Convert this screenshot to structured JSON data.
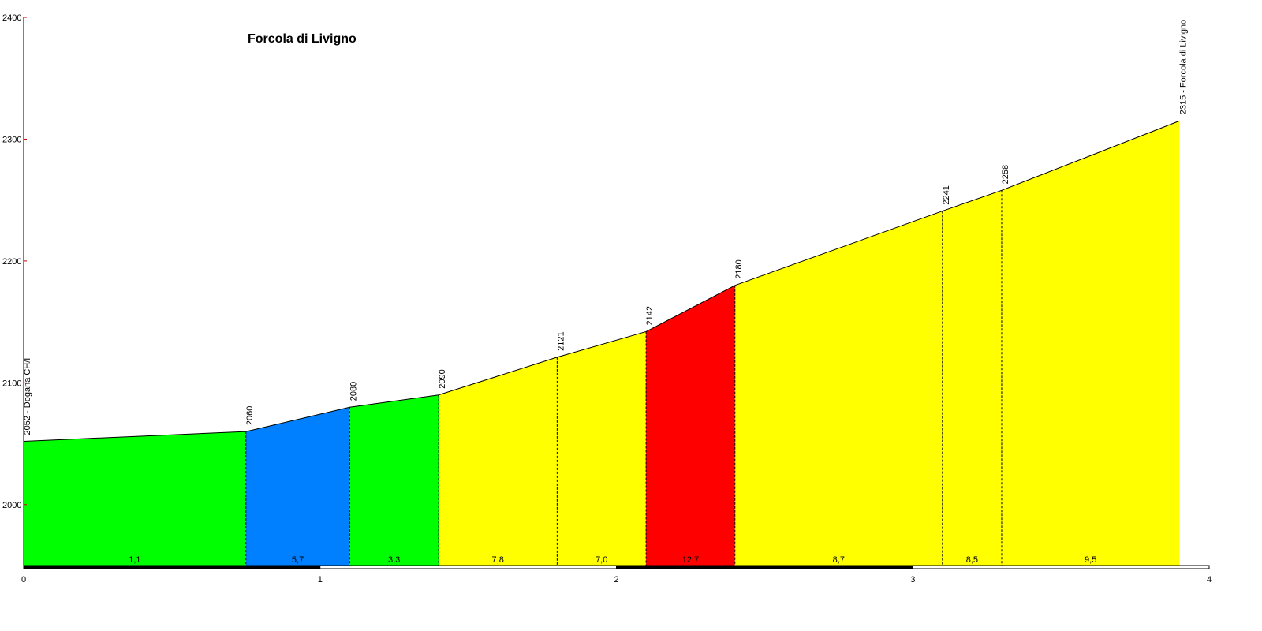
{
  "chart_data": {
    "type": "area",
    "title": "Forcola di Livigno",
    "xlabel": "",
    "ylabel": "",
    "xlim": [
      0,
      4
    ],
    "ylim": [
      1950,
      2400
    ],
    "x_ticks": [
      "0",
      "1",
      "2",
      "3",
      "4"
    ],
    "y_ticks": [
      "2000",
      "2100",
      "2200",
      "2300",
      "2400"
    ],
    "grid": false,
    "points": [
      {
        "x": 0.0,
        "y": 2052,
        "label": "2052 - Dogana CH/I"
      },
      {
        "x": 0.75,
        "y": 2060,
        "label": "2060"
      },
      {
        "x": 1.1,
        "y": 2080,
        "label": "2080"
      },
      {
        "x": 1.4,
        "y": 2090,
        "label": "2090"
      },
      {
        "x": 1.8,
        "y": 2121,
        "label": "2121"
      },
      {
        "x": 2.1,
        "y": 2142,
        "label": "2142"
      },
      {
        "x": 2.4,
        "y": 2180,
        "label": "2180"
      },
      {
        "x": 3.1,
        "y": 2241,
        "label": "2241"
      },
      {
        "x": 3.3,
        "y": 2258,
        "label": "2258"
      },
      {
        "x": 3.9,
        "y": 2315,
        "label": "2315 - Forcola di Livigno"
      }
    ],
    "segments": [
      {
        "grade": "1,1",
        "color": "#00ff00"
      },
      {
        "grade": "5,7",
        "color": "#0080ff"
      },
      {
        "grade": "3,3",
        "color": "#00ff00"
      },
      {
        "grade": "7,8",
        "color": "#ffff00"
      },
      {
        "grade": "7,0",
        "color": "#ffff00"
      },
      {
        "grade": "12,7",
        "color": "#ff0000"
      },
      {
        "grade": "8,7",
        "color": "#ffff00"
      },
      {
        "grade": "8,5",
        "color": "#ffff00"
      },
      {
        "grade": "9,5",
        "color": "#ffff00"
      }
    ]
  }
}
